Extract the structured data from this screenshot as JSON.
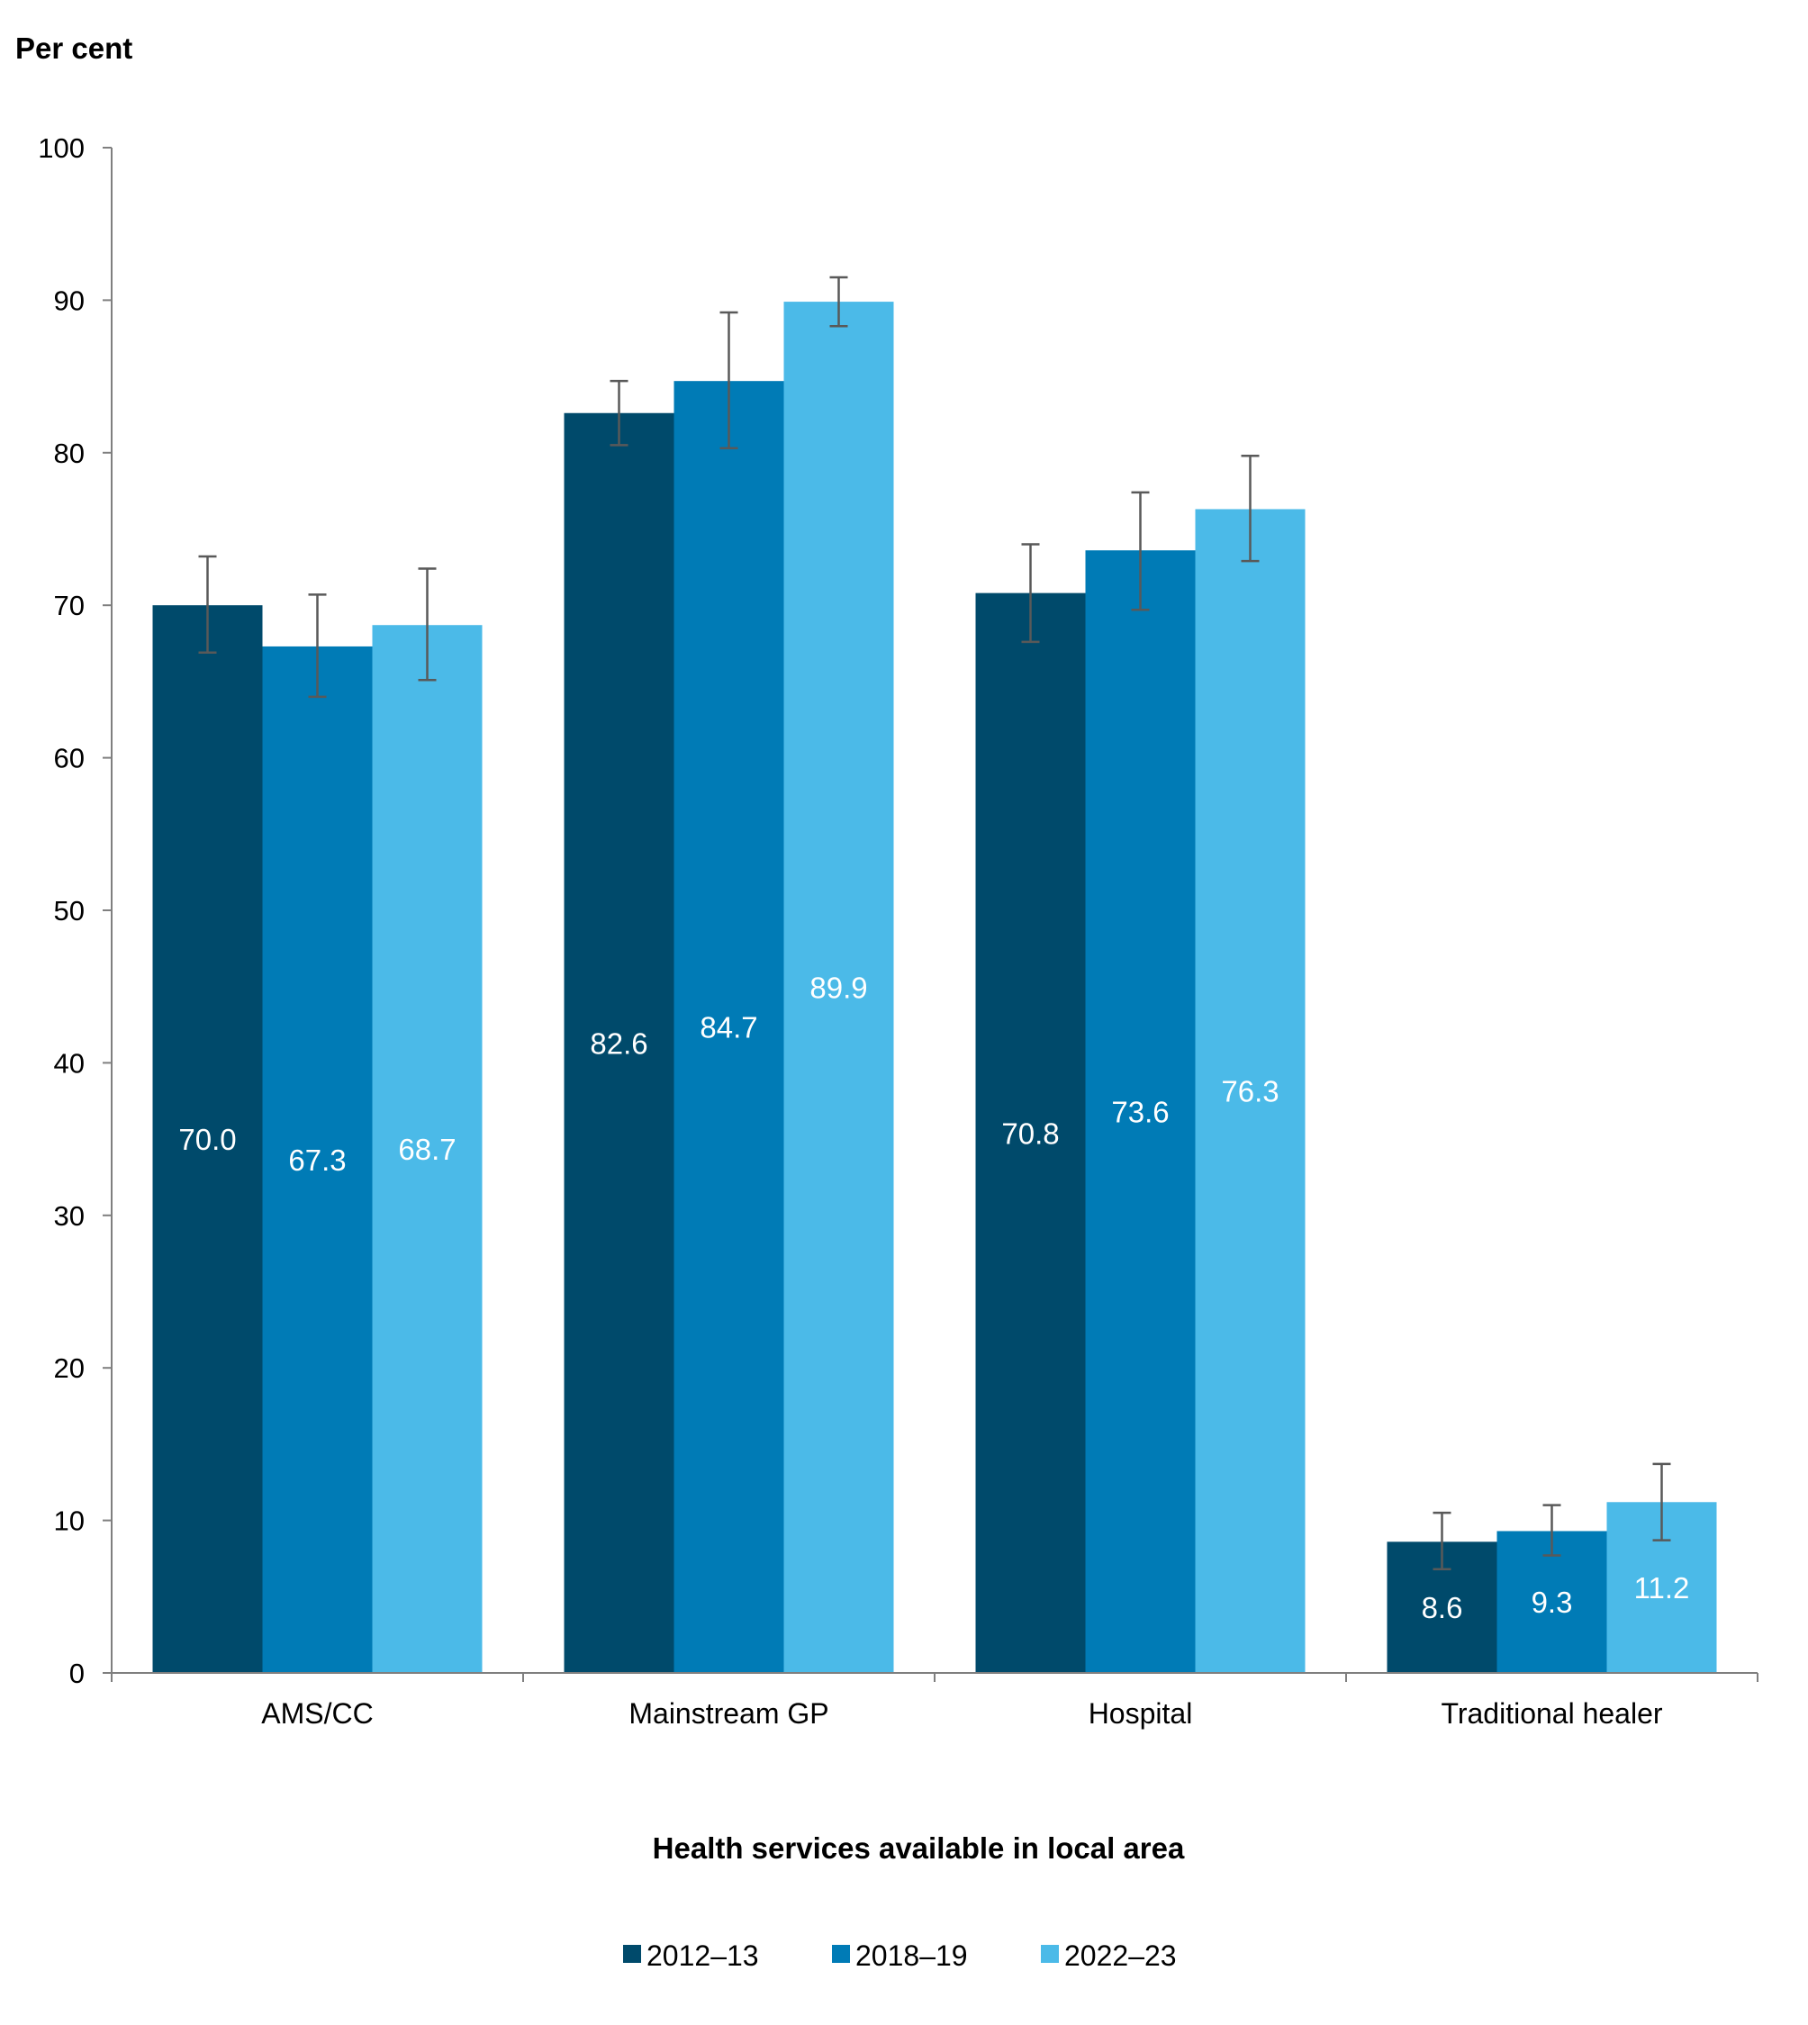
{
  "chart_data": {
    "type": "bar",
    "title": "",
    "ylabel": "Per cent",
    "xlabel": "Health services available in local area",
    "ylim": [
      0,
      100
    ],
    "yticks": [
      0,
      10,
      20,
      30,
      40,
      50,
      60,
      70,
      80,
      90,
      100
    ],
    "categories": [
      "AMS/CC",
      "Mainstream GP",
      "Hospital",
      "Traditional healer"
    ],
    "series": [
      {
        "name": "2012–13",
        "color": "#004a6b",
        "values": [
          70.0,
          82.6,
          70.8,
          8.6
        ],
        "labels": [
          "70.0",
          "82.6",
          "70.8",
          "8.6"
        ],
        "ci_low": [
          66.9,
          80.5,
          67.6,
          6.8
        ],
        "ci_high": [
          73.2,
          84.7,
          74.0,
          10.5
        ]
      },
      {
        "name": "2018–19",
        "color": "#007bb6",
        "values": [
          67.3,
          84.7,
          73.6,
          9.3
        ],
        "labels": [
          "67.3",
          "84.7",
          "73.6",
          "9.3"
        ],
        "ci_low": [
          64.0,
          80.3,
          69.7,
          7.7
        ],
        "ci_high": [
          70.7,
          89.2,
          77.4,
          11.0
        ]
      },
      {
        "name": "2022–23",
        "color": "#4bbae8",
        "values": [
          68.7,
          89.9,
          76.3,
          11.2
        ],
        "labels": [
          "68.7",
          "89.9",
          "76.3",
          "11.2"
        ],
        "ci_low": [
          65.1,
          88.3,
          72.9,
          8.7
        ],
        "ci_high": [
          72.4,
          91.5,
          79.8,
          13.7
        ]
      }
    ],
    "grid": false,
    "legend": "bottom-center",
    "error_bars": true
  }
}
